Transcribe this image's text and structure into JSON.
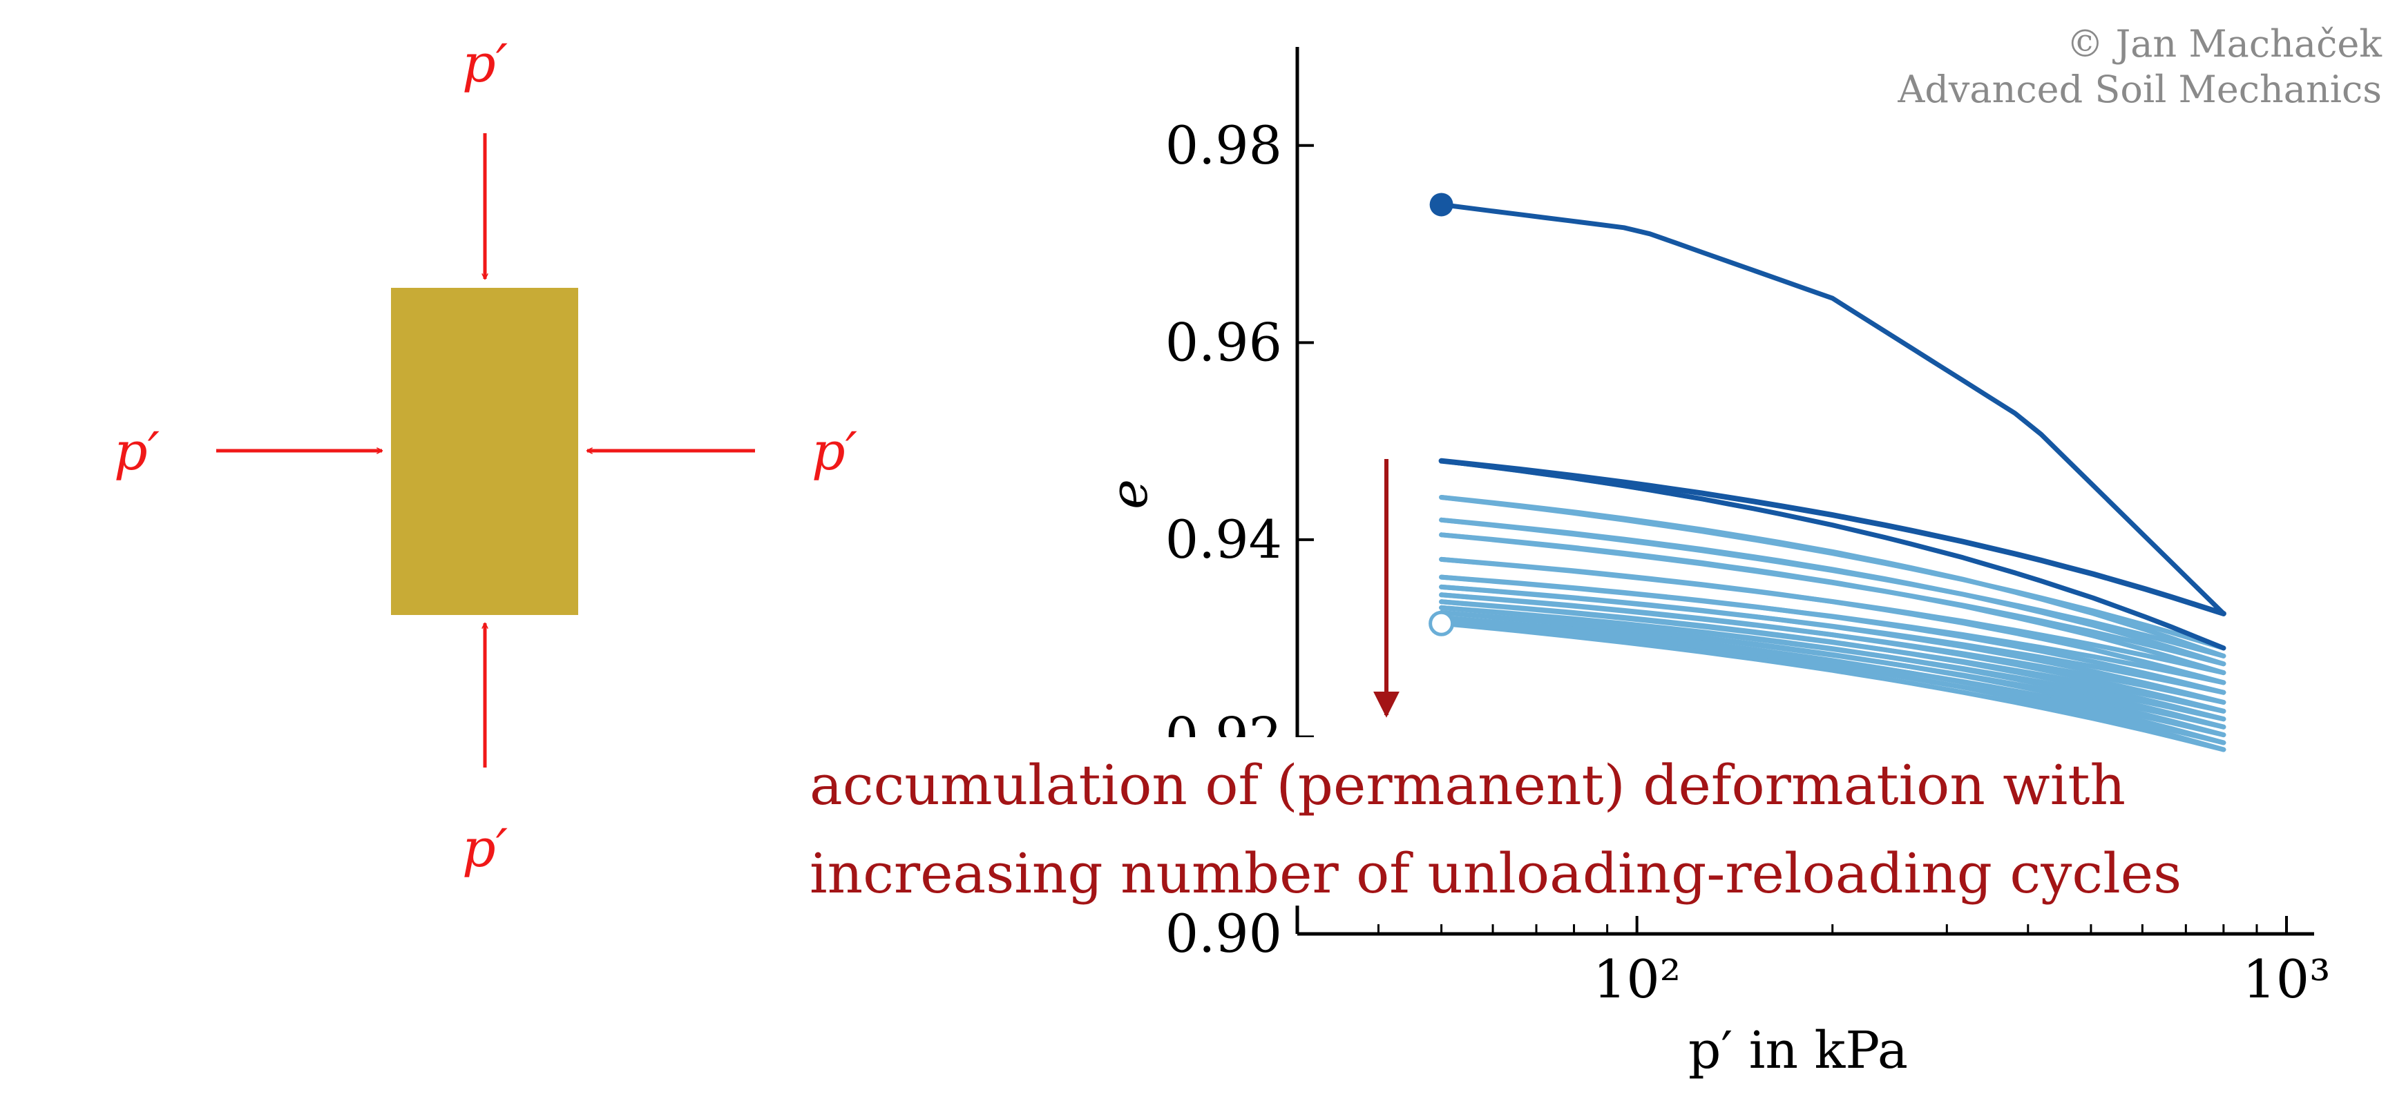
{
  "colors": {
    "load_arrow": "#f01818",
    "soil_block": "#c8ab36",
    "initial_loading": "#1557a2",
    "cycles": "#6aaed7",
    "annotation": "#a31416",
    "copyright": "#8a8a8a",
    "axis": "#000000"
  },
  "diagram": {
    "load_label": "p′"
  },
  "copyright": {
    "line1": "© Jan Machaček",
    "line2": "Advanced Soil Mechanics"
  },
  "annotation": {
    "line1": "accumulation of (permanent) deformation with",
    "line2": "increasing number of unloading-reloading cycles"
  },
  "chart_data": {
    "type": "line",
    "xlabel": "p′ in kPa",
    "ylabel": "e",
    "xscale": "log",
    "xlim": [
      30,
      1000
    ],
    "ylim": [
      0.9,
      0.99
    ],
    "xticks": [
      {
        "value": 100,
        "label": "10²"
      },
      {
        "value": 1000,
        "label": "10³"
      }
    ],
    "yticks": [
      {
        "value": 0.98,
        "label": "0.98"
      },
      {
        "value": 0.96,
        "label": "0.96"
      },
      {
        "value": 0.94,
        "label": "0.94"
      },
      {
        "value": 0.92,
        "label": "0.92"
      },
      {
        "value": 0.9,
        "label": "0.90"
      }
    ],
    "grid": false,
    "p_min": 50,
    "p_max": 800,
    "start_point": {
      "x": 50,
      "y": 0.974
    },
    "end_point": {
      "x": 50,
      "y": 0.9315
    },
    "initial_loading": {
      "x": [
        50,
        100,
        200,
        400,
        800
      ],
      "y": [
        0.974,
        0.9715,
        0.9645,
        0.952,
        0.9325
      ]
    },
    "first_unloading": {
      "x": [
        800,
        400,
        200,
        100,
        50
      ],
      "y": [
        0.9325,
        0.9378,
        0.9425,
        0.9458,
        0.948
      ]
    },
    "cycles": [
      {
        "reload_start": 0.948,
        "reload_end": 0.929,
        "unload_end": 0.9443
      },
      {
        "reload_start": 0.9443,
        "reload_end": 0.9282,
        "unload_end": 0.942
      },
      {
        "reload_start": 0.942,
        "reload_end": 0.9274,
        "unload_end": 0.9405
      },
      {
        "reload_start": 0.9405,
        "reload_end": 0.9265,
        "unload_end": 0.938
      },
      {
        "reload_start": 0.938,
        "reload_end": 0.9255,
        "unload_end": 0.9362
      },
      {
        "reload_start": 0.9362,
        "reload_end": 0.9245,
        "unload_end": 0.9352
      },
      {
        "reload_start": 0.9352,
        "reload_end": 0.9235,
        "unload_end": 0.9344
      },
      {
        "reload_start": 0.9344,
        "reload_end": 0.9226,
        "unload_end": 0.9337
      },
      {
        "reload_start": 0.9337,
        "reload_end": 0.9218,
        "unload_end": 0.9331
      },
      {
        "reload_start": 0.9331,
        "reload_end": 0.921,
        "unload_end": 0.9326
      },
      {
        "reload_start": 0.9326,
        "reload_end": 0.9202,
        "unload_end": 0.9321
      },
      {
        "reload_start": 0.9321,
        "reload_end": 0.9194,
        "unload_end": 0.9318
      },
      {
        "reload_start": 0.9318,
        "reload_end": 0.9187,
        "unload_end": 0.9315
      }
    ]
  }
}
